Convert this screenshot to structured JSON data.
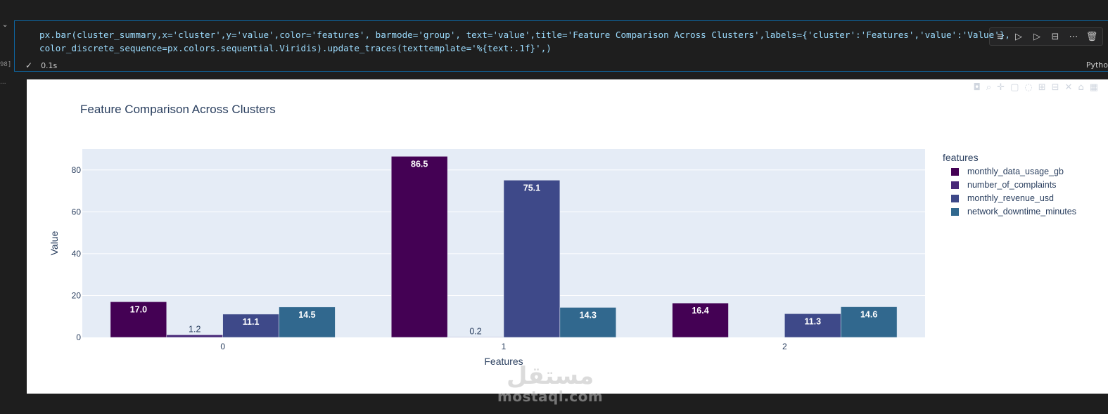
{
  "gutter": {
    "exec_count": "98]",
    "collapse": "⌄",
    "ellipsis": "..."
  },
  "cell": {
    "code_line1": "px.bar(cluster_summary,x='cluster',y='value',color='features', barmode='group', text='value',title='Feature Comparison Across Clusters',labels={'cluster':'Features','value':'Value'},",
    "code_line2": "color_discrete_sequence=px.colors.sequential.Viridis).update_traces(texttemplate='%{text:.1f}',)",
    "status_time": "0.1s",
    "status_check": "✓",
    "language": "Pytho",
    "toolbar_icons": [
      "run-by-line-icon",
      "execute-above-icon",
      "execute-below-icon",
      "split-cell-icon",
      "more-icon",
      "delete-icon"
    ]
  },
  "watermark": {
    "arabic": "مستقل",
    "latin": "mostaql.com"
  },
  "chart_data": {
    "type": "bar",
    "barmode": "group",
    "title": "Feature Comparison Across Clusters",
    "xlabel": "Features",
    "ylabel": "Value",
    "categories": [
      "0",
      "1",
      "2"
    ],
    "yticks": [
      "0",
      "20",
      "40",
      "60",
      "80"
    ],
    "ylim": [
      0,
      90
    ],
    "grid": true,
    "legend_title": "features",
    "legend_position": "right",
    "series": [
      {
        "name": "monthly_data_usage_gb",
        "color": "#440154",
        "values": [
          17.0,
          86.5,
          16.4
        ],
        "labels": [
          "17.0",
          "86.5",
          "16.4"
        ]
      },
      {
        "name": "number_of_complaints",
        "color": "#482878",
        "values": [
          1.2,
          0.2,
          null
        ],
        "labels": [
          "1.2",
          "0.2",
          ""
        ]
      },
      {
        "name": "monthly_revenue_usd",
        "color": "#3e4989",
        "values": [
          11.1,
          75.1,
          11.3
        ],
        "labels": [
          "11.1",
          "75.1",
          "11.3"
        ]
      },
      {
        "name": "network_downtime_minutes",
        "color": "#31688e",
        "values": [
          14.5,
          14.3,
          14.6
        ],
        "labels": [
          "14.5",
          "14.3",
          "14.6"
        ]
      }
    ]
  }
}
